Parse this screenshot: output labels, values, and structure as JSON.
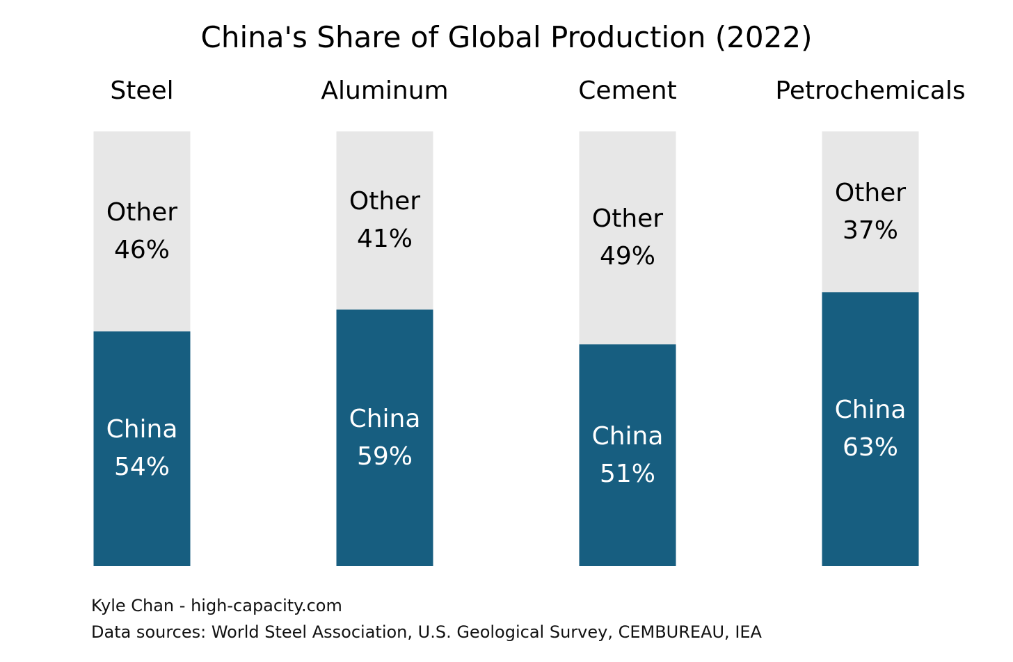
{
  "chart_data": {
    "type": "bar",
    "stacked": true,
    "title": "China's Share of Global Production (2022)",
    "categories": [
      "Steel",
      "Aluminum",
      "Cement",
      "Petrochemicals"
    ],
    "series": [
      {
        "name": "China",
        "color": "#175e80",
        "text_color": "#ffffff",
        "values": [
          54,
          59,
          51,
          63
        ],
        "labels": [
          "54%",
          "59%",
          "51%",
          "63%"
        ]
      },
      {
        "name": "Other",
        "color": "#e7e7e7",
        "text_color": "#000000",
        "values": [
          46,
          41,
          49,
          37
        ],
        "labels": [
          "46%",
          "41%",
          "49%",
          "37%"
        ]
      }
    ],
    "ylim": [
      0,
      100
    ],
    "xlabel": "",
    "ylabel": "",
    "grid": false,
    "legend": "none"
  },
  "footer": {
    "author": "Kyle Chan - high-capacity.com",
    "sources": "Data sources: World Steel Association, U.S. Geological Survey, CEMBUREAU, IEA"
  }
}
